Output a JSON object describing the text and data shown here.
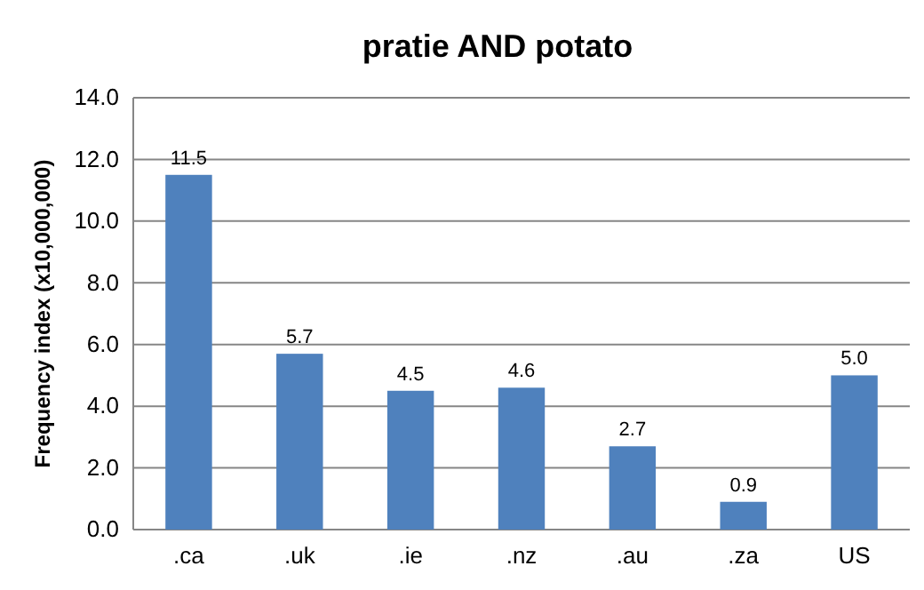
{
  "chart_data": {
    "type": "bar",
    "title": "pratie AND potato",
    "ylabel": "Frequency index (x10,000,000)",
    "categories": [
      ".ca",
      ".uk",
      ".ie",
      ".nz",
      ".au",
      ".za",
      "US"
    ],
    "values": [
      11.5,
      5.7,
      4.5,
      4.6,
      2.7,
      0.9,
      5.0
    ],
    "value_labels": [
      "11.5",
      "5.7",
      "4.5",
      "4.6",
      "2.7",
      "0.9",
      "5.0"
    ],
    "color": "#4f81bd",
    "ylim": [
      0,
      14
    ],
    "yticks": [
      {
        "value": 0,
        "label": "0.0"
      },
      {
        "value": 2,
        "label": "2.0"
      },
      {
        "value": 4,
        "label": "4.0"
      },
      {
        "value": 6,
        "label": "6.0"
      },
      {
        "value": 8,
        "label": "8.0"
      },
      {
        "value": 10,
        "label": "10.0"
      },
      {
        "value": 12,
        "label": "12.0"
      },
      {
        "value": 14,
        "label": "14.0"
      }
    ],
    "grid": "y"
  }
}
